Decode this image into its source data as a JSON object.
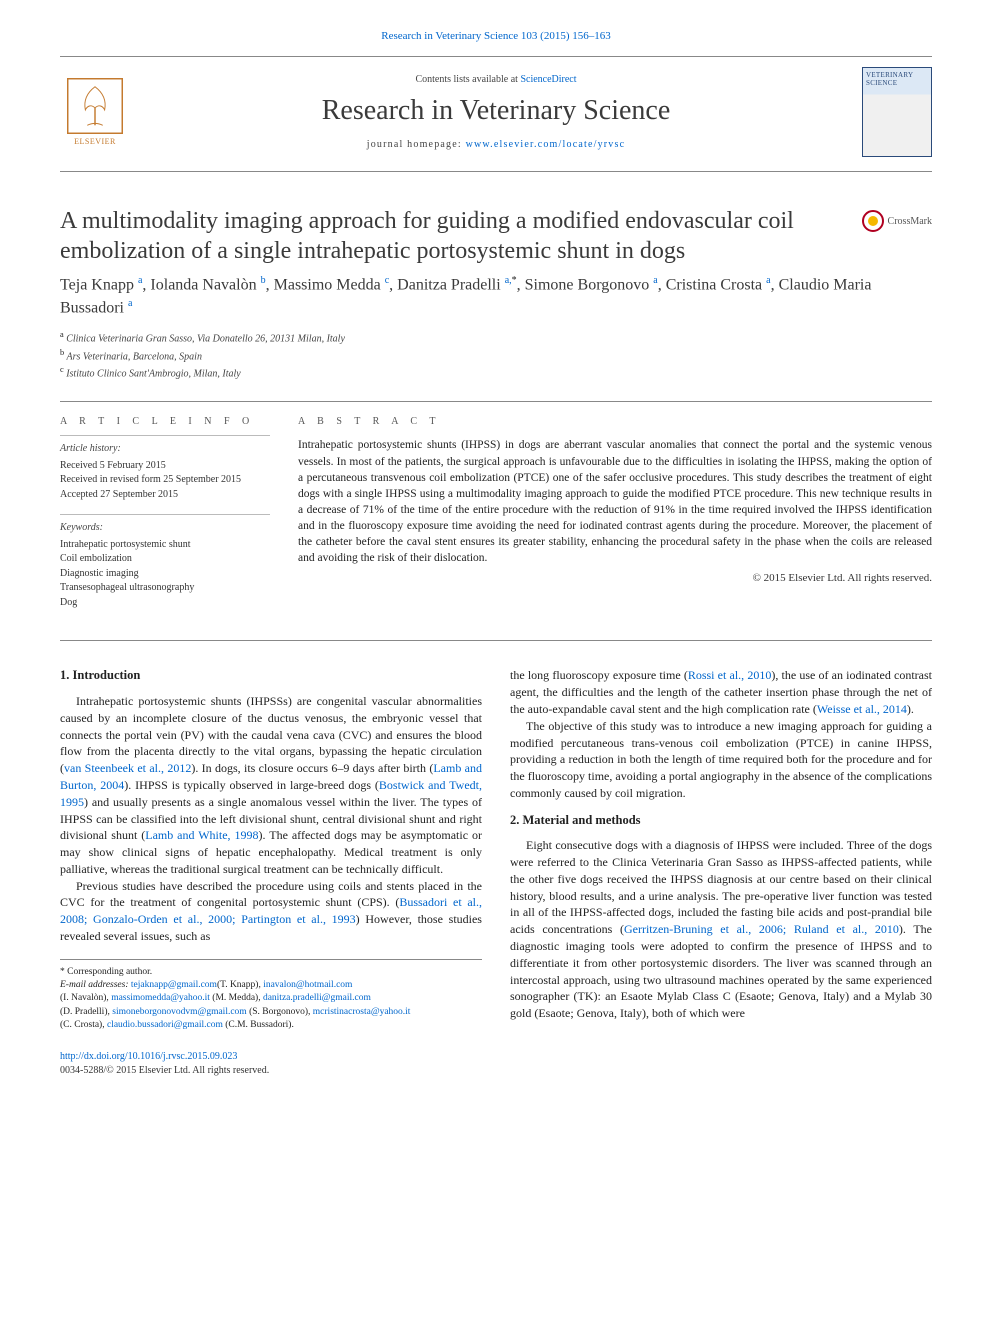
{
  "header": {
    "top_link": "Research in Veterinary Science 103 (2015) 156–163",
    "contents_prefix": "Contents lists available at ",
    "contents_link": "ScienceDirect",
    "journal_name": "Research in Veterinary Science",
    "homepage_prefix": "journal homepage: ",
    "homepage_link": "www.elsevier.com/locate/yrvsc",
    "publisher_label": "ELSEVIER",
    "cover_label": "VETERINARY SCIENCE"
  },
  "crossmark": {
    "label": "CrossMark"
  },
  "article": {
    "title": "A multimodality imaging approach for guiding a modified endovascular coil embolization of a single intrahepatic portosystemic shunt in dogs",
    "authors_html": "Teja Knapp <sup>a</sup>, Iolanda Navalòn <sup>b</sup>, Massimo Medda <sup>c</sup>, Danitza Pradelli <sup>a,</sup><sup class='sup-star'>*</sup>, Simone Borgonovo <sup>a</sup>, Cristina Crosta <sup>a</sup>, Claudio Maria Bussadori <sup>a</sup>",
    "affiliations": [
      {
        "sup": "a",
        "text": "Clinica Veterinaria Gran Sasso, Via Donatello 26, 20131 Milan, Italy"
      },
      {
        "sup": "b",
        "text": "Ars Veterinaria, Barcelona, Spain"
      },
      {
        "sup": "c",
        "text": "Istituto Clinico Sant'Ambrogio, Milan, Italy"
      }
    ]
  },
  "info": {
    "heading": "A R T I C L E   I N F O",
    "history_label": "Article history:",
    "history": [
      "Received 5 February 2015",
      "Received in revised form 25 September 2015",
      "Accepted 27 September 2015"
    ],
    "keywords_label": "Keywords:",
    "keywords": [
      "Intrahepatic portosystemic shunt",
      "Coil embolization",
      "Diagnostic imaging",
      "Transesophageal ultrasonography",
      "Dog"
    ]
  },
  "abstract": {
    "heading": "A B S T R A C T",
    "text": "Intrahepatic portosystemic shunts (IHPSS) in dogs are aberrant vascular anomalies that connect the portal and the systemic venous vessels. In most of the patients, the surgical approach is unfavourable due to the difficulties in isolating the IHPSS, making the option of a percutaneous transvenous coil embolization (PTCE) one of the safer occlusive procedures. This study describes the treatment of eight dogs with a single IHPSS using a multimodality imaging approach to guide the modified PTCE procedure. This new technique results in a decrease of 71% of the time of the entire procedure with the reduction of 91% in the time required involved the IHPSS identification and in the fluoroscopy exposure time avoiding the need for iodinated contrast agents during the procedure. Moreover, the placement of the catheter before the caval stent ensures its greater stability, enhancing the procedural safety in the phase when the coils are released and avoiding the risk of their dislocation.",
    "copyright": "© 2015 Elsevier Ltd. All rights reserved."
  },
  "sections": {
    "intro_heading": "1. Introduction",
    "intro_p1": "Intrahepatic portosystemic shunts (IHPSSs) are congenital vascular abnormalities caused by an incomplete closure of the ductus venosus, the embryonic vessel that connects the portal vein (PV) with the caudal vena cava (CVC) and ensures the blood flow from the placenta directly to the vital organs, bypassing the hepatic circulation (",
    "intro_ref1": "van Steenbeek et al., 2012",
    "intro_p1b": "). In dogs, its closure occurs 6–9 days after birth (",
    "intro_ref2": "Lamb and Burton, 2004",
    "intro_p1c": "). IHPSS is typically observed in large-breed dogs (",
    "intro_ref3": "Bostwick and Twedt, 1995",
    "intro_p1d": ") and usually presents as a single anomalous vessel within the liver. The types of IHPSS can be classified into the left divisional shunt, central divisional shunt and right divisional shunt (",
    "intro_ref4": "Lamb and White, 1998",
    "intro_p1e": "). The affected dogs may be asymptomatic or may show clinical signs of hepatic encephalopathy. Medical treatment is only palliative, whereas the traditional surgical treatment can be technically difficult.",
    "intro_p2a": "Previous studies have described the procedure using coils and stents placed in the CVC for the treatment of congenital portosystemic shunt (CPS). (",
    "intro_ref5": "Bussadori et al., 2008; Gonzalo-Orden et al., 2000; Partington et al., 1993",
    "intro_p2b": ") However, those studies revealed several issues, such as",
    "col2_p1a": "the long fluoroscopy exposure time (",
    "col2_ref1": "Rossi et al., 2010",
    "col2_p1b": "), the use of an iodinated contrast agent, the difficulties and the length of the catheter insertion phase through the net of the auto-expandable caval stent and the high complication rate (",
    "col2_ref2": "Weisse et al., 2014",
    "col2_p1c": ").",
    "col2_p2": "The objective of this study was to introduce a new imaging approach for guiding a modified percutaneous trans-venous coil embolization (PTCE) in canine IHPSS, providing a reduction in both the length of time required both for the procedure and for the fluoroscopy time, avoiding a portal angiography in the absence of the complications commonly caused by coil migration.",
    "methods_heading": "2. Material and methods",
    "methods_p1a": "Eight consecutive dogs with a diagnosis of IHPSS were included. Three of the dogs were referred to the Clinica Veterinaria Gran Sasso as IHPSS-affected patients, while the other five dogs received the IHPSS diagnosis at our centre based on their clinical history, blood results, and a urine analysis. The pre-operative liver function was tested in all of the IHPSS-affected dogs, included the fasting bile acids and post-prandial bile acids concentrations (",
    "methods_ref1": "Gerritzen-Bruning et al., 2006; Ruland et al., 2010",
    "methods_p1b": "). The diagnostic imaging tools were adopted to confirm the presence of IHPSS and to differentiate it from other portosystemic disorders. The liver was scanned through an intercostal approach, using two ultrasound machines operated by the same experienced sonographer (TK): an Esaote Mylab Class C (Esaote; Genova, Italy) and a Mylab 30 gold (Esaote; Genova, Italy), both of which were"
  },
  "footnote": {
    "corr": "* Corresponding author.",
    "email_label": "E-mail addresses: ",
    "emails": [
      {
        "addr": "tejaknapp@gmail.com",
        "who": "(T. Knapp), "
      },
      {
        "addr": "inavalon@hotmail.com",
        "who": ""
      }
    ],
    "line2_who": "(I. Navalòn), ",
    "line2": [
      {
        "addr": "massimomedda@yahoo.it",
        "who": " (M. Medda), "
      },
      {
        "addr": "danitza.pradelli@gmail.com",
        "who": ""
      }
    ],
    "line3_who": "(D. Pradelli), ",
    "line3": [
      {
        "addr": "simoneborgonovodvm@gmail.com",
        "who": " (S. Borgonovo), "
      },
      {
        "addr": "mcristinacrosta@yahoo.it",
        "who": ""
      }
    ],
    "line4_who": "(C. Crosta), ",
    "line4": [
      {
        "addr": "claudio.bussadori@gmail.com",
        "who": " (C.M. Bussadori)."
      }
    ]
  },
  "footer": {
    "doi": "http://dx.doi.org/10.1016/j.rvsc.2015.09.023",
    "issn": "0034-5288/© 2015 Elsevier Ltd. All rights reserved."
  },
  "colors": {
    "link": "#0066cc",
    "text": "#222222",
    "rule": "#888888",
    "elsevier": "#c47a2e"
  }
}
